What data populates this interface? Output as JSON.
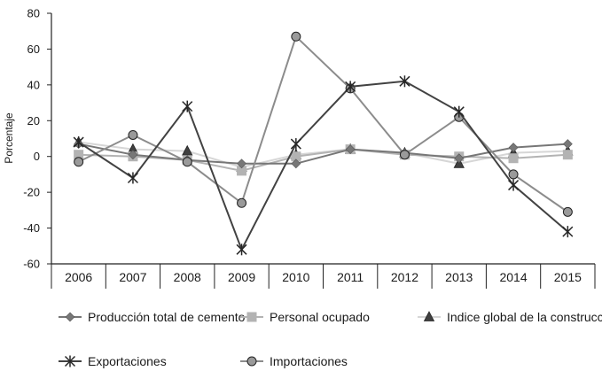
{
  "chart_data": {
    "type": "line",
    "title": "",
    "xlabel": "",
    "ylabel": "Porcentaje",
    "ylim": [
      -60,
      80
    ],
    "yticks": [
      -60,
      -40,
      -20,
      0,
      20,
      40,
      60,
      80
    ],
    "categories": [
      "2006",
      "2007",
      "2008",
      "2009",
      "2010",
      "2011",
      "2012",
      "2013",
      "2014",
      "2015"
    ],
    "legend_position": "bottom",
    "series": [
      {
        "name": "Producción total de cemento",
        "marker": "diamond",
        "color": "#7a7a7a",
        "values": [
          7,
          1,
          -2,
          -4,
          -4,
          4,
          2,
          -1,
          5,
          7
        ]
      },
      {
        "name": "Personal ocupado",
        "marker": "square",
        "color": "#b2b2b2",
        "values": [
          1,
          0,
          -2,
          -8,
          0,
          4,
          1,
          0,
          -1,
          1
        ]
      },
      {
        "name": "Indice global de la construcción",
        "marker": "triangle",
        "color": "#d8d8d8",
        "values": [
          8,
          4,
          3,
          -6,
          1,
          4,
          2,
          -4,
          2,
          3
        ]
      },
      {
        "name": "Exportaciones",
        "marker": "star",
        "color": "#4a4a4a",
        "values": [
          8,
          -12,
          28,
          -52,
          7,
          39,
          42,
          25,
          -16,
          -42
        ]
      },
      {
        "name": "Importaciones",
        "marker": "circle",
        "color": "#8c8c8c",
        "values": [
          -3,
          12,
          -3,
          -26,
          67,
          38,
          1,
          22,
          -10,
          -31
        ]
      }
    ]
  }
}
